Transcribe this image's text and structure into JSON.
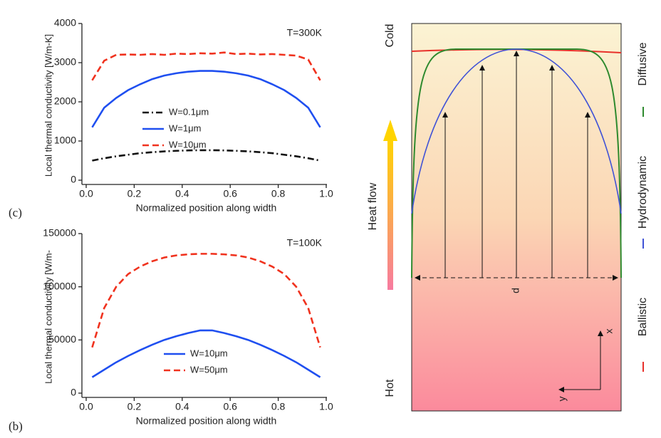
{
  "chart_data": [
    {
      "type": "line",
      "panel": "(c)",
      "xlabel": "Normalized position along width",
      "ylabel": "Local thermal conductivity [W/m-K]",
      "annotation": "T=300K",
      "legend": "center",
      "x": [
        0.025,
        0.075,
        0.125,
        0.175,
        0.225,
        0.275,
        0.325,
        0.375,
        0.425,
        0.475,
        0.525,
        0.575,
        0.625,
        0.675,
        0.725,
        0.775,
        0.825,
        0.875,
        0.925,
        0.975
      ],
      "xlim": [
        0,
        1
      ],
      "ylim": [
        0,
        4000
      ],
      "xticks": [
        {
          "value": 0,
          "label": "0.0"
        },
        0.2,
        0.4,
        0.6,
        0.8,
        {
          "value": 1,
          "label": "1.0"
        }
      ],
      "yticks": [
        0,
        1000,
        2000,
        3000,
        4000
      ],
      "series": [
        {
          "name": "W=0.1μm",
          "color": "#111111",
          "style": "dashdot",
          "values": [
            500,
            560,
            610,
            650,
            690,
            715,
            735,
            750,
            760,
            765,
            765,
            760,
            750,
            735,
            715,
            690,
            650,
            610,
            560,
            500
          ]
        },
        {
          "name": "W=1μm",
          "color": "#1f4ff0",
          "style": "solid",
          "values": [
            1350,
            1850,
            2100,
            2300,
            2450,
            2580,
            2670,
            2730,
            2770,
            2790,
            2790,
            2770,
            2730,
            2670,
            2580,
            2450,
            2300,
            2100,
            1850,
            1350
          ]
        },
        {
          "name": "W=10μm",
          "color": "#f0321e",
          "style": "dashed",
          "values": [
            2550,
            3050,
            3200,
            3210,
            3200,
            3220,
            3200,
            3230,
            3220,
            3240,
            3230,
            3260,
            3220,
            3230,
            3210,
            3220,
            3200,
            3180,
            3080,
            2550
          ]
        }
      ]
    },
    {
      "type": "line",
      "panel": "(b)",
      "xlabel": "Normalized position along width",
      "ylabel": "Local thermal conductivity [W/m-",
      "annotation": "T=100K",
      "legend": "lower center",
      "x": [
        0.025,
        0.075,
        0.125,
        0.175,
        0.225,
        0.275,
        0.325,
        0.375,
        0.425,
        0.475,
        0.525,
        0.575,
        0.625,
        0.675,
        0.725,
        0.775,
        0.825,
        0.875,
        0.925,
        0.975
      ],
      "xlim": [
        0,
        1
      ],
      "ylim": [
        0,
        150000
      ],
      "xticks": [
        {
          "value": 0,
          "label": "0.0"
        },
        0.2,
        0.4,
        0.6,
        0.8,
        {
          "value": 1,
          "label": "1.0"
        }
      ],
      "yticks": [
        0,
        50000,
        100000,
        150000
      ],
      "series": [
        {
          "name": "W=10μm",
          "color": "#1f4ff0",
          "style": "solid",
          "values": [
            15000,
            22000,
            29000,
            35000,
            40500,
            45500,
            50000,
            53500,
            56500,
            59000,
            59000,
            56500,
            53500,
            50000,
            45500,
            40500,
            35000,
            29000,
            22000,
            15000
          ]
        },
        {
          "name": "W=50μm",
          "color": "#f0321e",
          "style": "dashed",
          "values": [
            43000,
            80000,
            100000,
            112000,
            119000,
            124000,
            127500,
            129500,
            130500,
            131000,
            131000,
            130500,
            129500,
            127500,
            124000,
            119000,
            112000,
            100000,
            80000,
            43000
          ]
        }
      ]
    }
  ],
  "diagram": {
    "cold": "Cold",
    "hot": "Hot",
    "heat_flow": "Heat flow",
    "width": "d",
    "x_axis": "x",
    "y_axis": "y",
    "legend": [
      "Ballistic",
      "Hydrodynamic",
      "Diffusive"
    ]
  }
}
